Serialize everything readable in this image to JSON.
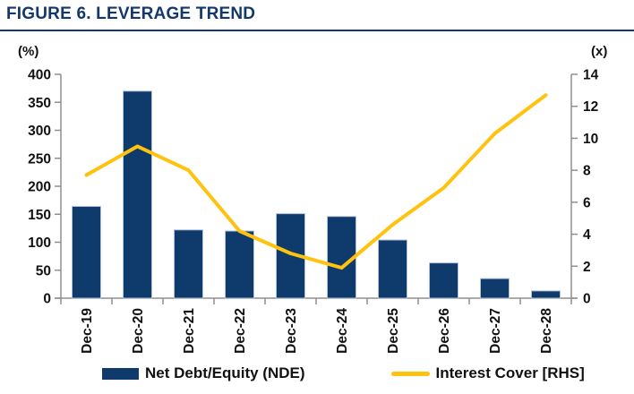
{
  "title": "FIGURE 6. LEVERAGE TREND",
  "colors": {
    "navy": "#0E3A6C",
    "yellow": "#FFC20E",
    "title_navy": "#14386B",
    "axis_gray": "#8F8F8F",
    "bar_border": "#B3C2D6",
    "tick_text": "#111111"
  },
  "chart_data": {
    "type": "bar+line combo",
    "title": "FIGURE 6. LEVERAGE TREND",
    "categories": [
      "Dec-19",
      "Dec-20",
      "Dec-21",
      "Dec-22",
      "Dec-23",
      "Dec-24",
      "Dec-25",
      "Dec-26",
      "Dec-27",
      "Dec-28"
    ],
    "series": [
      {
        "name": "Net Debt/Equity (NDE)",
        "type": "bar",
        "axis": "left",
        "color": "#0E3A6C",
        "values": [
          164,
          370,
          122,
          120,
          151,
          146,
          104,
          63,
          35,
          13
        ]
      },
      {
        "name": "Interest Cover [RHS]",
        "type": "line",
        "axis": "right",
        "color": "#FFC20E",
        "values": [
          7.7,
          9.5,
          8.0,
          4.2,
          2.8,
          1.9,
          4.6,
          6.9,
          10.3,
          12.7
        ]
      }
    ],
    "left_axis": {
      "label": "(%)",
      "min": 0,
      "max": 400,
      "step": 50,
      "ticks": [
        400,
        350,
        300,
        250,
        200,
        150,
        100,
        50,
        0
      ]
    },
    "right_axis": {
      "label": "(x)",
      "min": 0,
      "max": 14,
      "step": 2,
      "ticks": [
        14,
        12,
        10,
        8,
        6,
        4,
        2,
        0
      ]
    },
    "grid": false,
    "legend_position": "bottom"
  },
  "legend": [
    {
      "label": "Net Debt/Equity (NDE)",
      "color": "#0E3A6C",
      "marker": "rect"
    },
    {
      "label": "Interest Cover [RHS]",
      "color": "#FFC20E",
      "marker": "line"
    }
  ]
}
